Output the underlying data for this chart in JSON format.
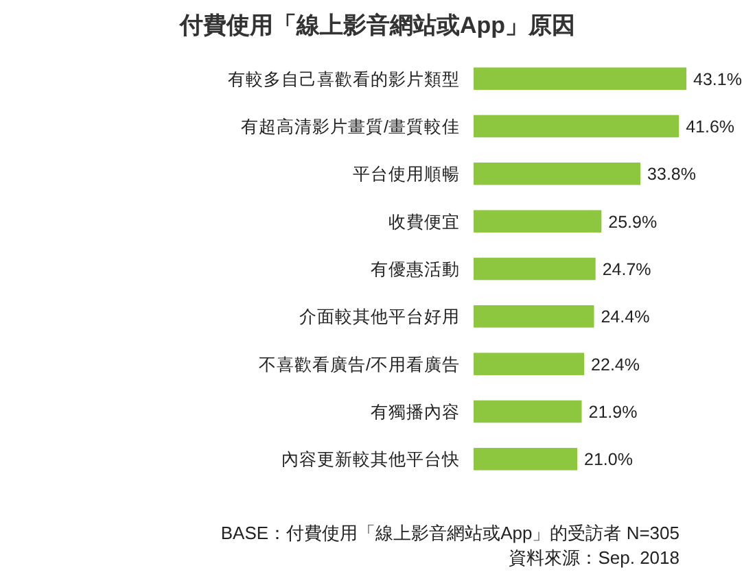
{
  "chart_data": {
    "type": "bar",
    "orientation": "horizontal",
    "title": "付費使用「線上影音網站或App」原因",
    "categories": [
      "有較多自己喜歡看的影片類型",
      "有超高清影片畫質/畫質較佳",
      "平台使用順暢",
      "收費便宜",
      "有優惠活動",
      "介面較其他平台好用",
      "不喜歡看廣告/不用看廣告",
      "有獨播內容",
      "內容更新較其他平台快"
    ],
    "values": [
      43.1,
      41.6,
      33.8,
      25.9,
      24.7,
      24.4,
      22.4,
      21.9,
      21.0
    ],
    "value_labels": [
      "43.1%",
      "41.6%",
      "33.8%",
      "25.9%",
      "24.7%",
      "24.4%",
      "22.4%",
      "21.9%",
      "21.0%"
    ],
    "color": "#8dc63f",
    "annotations": [
      "BASE：付費使用「線上影音網站或App」的受訪者 N=305",
      "資料來源：Sep. 2018"
    ]
  }
}
